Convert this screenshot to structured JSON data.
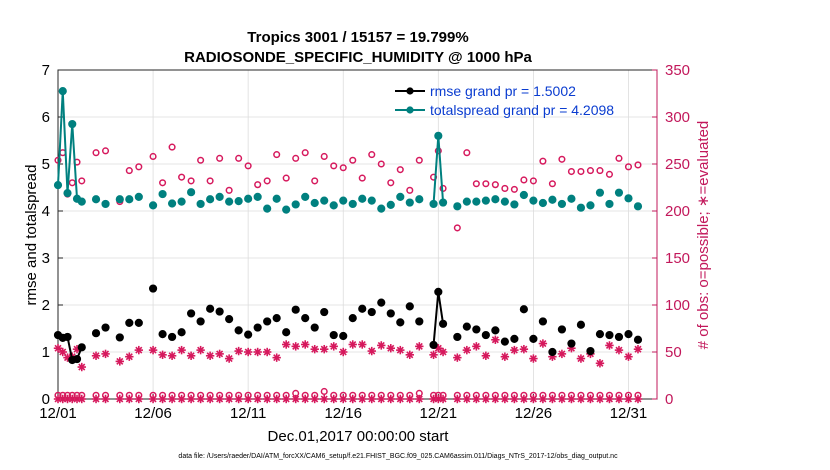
{
  "chart_data": {
    "type": "line",
    "title": "Tropics 3001 / 15157 = 19.799%",
    "subtitle": "RADIOSONDE_SPECIFIC_HUMIDITY @ 1000 hPa",
    "xlabel": "Dec.01,2017 00:00:00 start",
    "ylabel_left": "rmse and totalspread",
    "ylabel_right": "# of obs: o=possible; ∗=evaluated",
    "xlim": [
      0,
      31.5
    ],
    "ylim_left": [
      0,
      7
    ],
    "ylim_right": [
      0,
      350
    ],
    "grid": true,
    "legend_position": "top-right",
    "x_ticks": [
      {
        "value": 0,
        "label": "12/01"
      },
      {
        "value": 5,
        "label": "12/06"
      },
      {
        "value": 10,
        "label": "12/11"
      },
      {
        "value": 15,
        "label": "12/16"
      },
      {
        "value": 20,
        "label": "12/21"
      },
      {
        "value": 25,
        "label": "12/26"
      },
      {
        "value": 30,
        "label": "12/31"
      }
    ],
    "y_ticks_left": [
      0,
      1,
      2,
      3,
      4,
      5,
      6,
      7
    ],
    "y_ticks_right": [
      0,
      50,
      100,
      150,
      200,
      250,
      300,
      350
    ],
    "colors": {
      "rmse": "#000000",
      "spread": "#00807f",
      "obs": "#d6195d",
      "axis_right": "#c2185b"
    },
    "series": [
      {
        "name": "rmse grand pr = 1.5002",
        "axis": "left",
        "connect_gap_days": 0.3,
        "x": [
          0,
          0.25,
          0.5,
          0.75,
          1,
          1.25,
          2,
          2.5,
          3.25,
          3.75,
          4.25,
          5,
          5.5,
          6,
          6.5,
          7,
          7.5,
          8,
          8.5,
          9,
          9.5,
          10,
          10.5,
          11,
          11.5,
          12,
          12.5,
          13,
          13.5,
          14,
          14.5,
          15,
          15.5,
          16,
          16.5,
          17,
          17.5,
          18,
          18.5,
          19,
          19.75,
          20,
          20.25,
          21,
          21.5,
          22,
          22.5,
          23,
          23.5,
          24,
          24.5,
          25,
          25.5,
          26,
          26.5,
          27,
          27.5,
          28,
          28.5,
          29,
          29.5,
          30,
          30.5
        ],
        "values": [
          1.36,
          1.3,
          1.32,
          0.83,
          0.85,
          1.1,
          1.4,
          1.52,
          1.31,
          1.62,
          1.62,
          2.35,
          1.38,
          1.32,
          1.42,
          1.82,
          1.65,
          1.92,
          1.86,
          1.7,
          1.46,
          1.37,
          1.52,
          1.65,
          1.72,
          1.42,
          1.9,
          1.72,
          1.52,
          1.85,
          1.36,
          1.34,
          1.72,
          1.92,
          1.85,
          2.05,
          1.82,
          1.63,
          1.97,
          1.65,
          1.15,
          2.28,
          1.6,
          1.32,
          1.54,
          1.48,
          1.36,
          1.46,
          1.22,
          1.28,
          1.91,
          1.28,
          1.65,
          1.0,
          1.48,
          1.18,
          1.58,
          1.02,
          1.38,
          1.36,
          1.32,
          1.38,
          1.26
        ]
      },
      {
        "name": "totalspread grand pr = 4.2098",
        "axis": "left",
        "connect_gap_days": 0.3,
        "x": [
          0,
          0.25,
          0.5,
          0.75,
          1,
          1.25,
          2,
          2.5,
          3.25,
          3.75,
          4.25,
          5,
          5.5,
          6,
          6.5,
          7,
          7.5,
          8,
          8.5,
          9,
          9.5,
          10,
          10.5,
          11,
          11.5,
          12,
          12.5,
          13,
          13.5,
          14,
          14.5,
          15,
          15.5,
          16,
          16.5,
          17,
          17.5,
          18,
          18.5,
          19,
          19.75,
          20,
          20.25,
          21,
          21.5,
          22,
          22.5,
          23,
          23.5,
          24,
          24.5,
          25,
          25.5,
          26,
          26.5,
          27,
          27.5,
          28,
          28.5,
          29,
          29.5,
          30,
          30.5
        ],
        "values": [
          4.55,
          6.55,
          4.38,
          5.85,
          4.26,
          4.2,
          4.25,
          4.15,
          4.25,
          4.25,
          4.3,
          4.12,
          4.36,
          4.16,
          4.2,
          4.4,
          4.15,
          4.25,
          4.3,
          4.2,
          4.21,
          4.26,
          4.3,
          4.05,
          4.26,
          4.03,
          4.14,
          4.3,
          4.17,
          4.22,
          4.12,
          4.22,
          4.15,
          4.26,
          4.22,
          4.05,
          4.13,
          4.3,
          4.18,
          4.25,
          4.15,
          5.6,
          4.18,
          4.1,
          4.2,
          4.2,
          4.22,
          4.25,
          4.2,
          4.14,
          4.34,
          4.22,
          4.17,
          4.24,
          4.15,
          4.26,
          4.07,
          4.12,
          4.39,
          4.15,
          4.39,
          4.27,
          4.1
        ]
      },
      {
        "name": "possible",
        "axis": "right",
        "marker": "circle",
        "x": [
          0,
          0.25,
          0.5,
          0.75,
          1,
          1.25,
          2,
          2.5,
          3.25,
          3.75,
          4.25,
          5,
          5.5,
          6,
          6.5,
          7,
          7.5,
          8,
          8.5,
          9,
          9.5,
          10,
          10.5,
          11,
          11.5,
          12,
          12.5,
          13,
          13.5,
          14,
          14.5,
          15,
          15.5,
          16,
          16.5,
          17,
          17.5,
          18,
          18.5,
          19,
          19.75,
          20,
          20.25,
          21,
          21.5,
          22,
          22.5,
          23,
          23.5,
          24,
          24.5,
          25,
          25.5,
          26,
          26.5,
          27,
          27.5,
          28,
          28.5,
          29,
          29.5,
          30,
          30.5
        ],
        "values": [
          254,
          262,
          218,
          230,
          252,
          232,
          262,
          264,
          210,
          243,
          247,
          258,
          230,
          268,
          236,
          232,
          254,
          232,
          256,
          222,
          256,
          248,
          228,
          232,
          260,
          235,
          256,
          262,
          232,
          258,
          248,
          246,
          254,
          235,
          260,
          250,
          230,
          244,
          222,
          254,
          236,
          264,
          224,
          182,
          262,
          229,
          229,
          228,
          224,
          223,
          233,
          232,
          253,
          229,
          255,
          242,
          242,
          243,
          243,
          239,
          256,
          247,
          249
        ]
      },
      {
        "name": "evaluated",
        "axis": "right",
        "marker": "asterisk",
        "x": [
          0,
          0.25,
          0.5,
          0.75,
          1,
          1.25,
          2,
          2.5,
          3.25,
          3.75,
          4.25,
          5,
          5.5,
          6,
          6.5,
          7,
          7.5,
          8,
          8.5,
          9,
          9.5,
          10,
          10.5,
          11,
          11.5,
          12,
          12.5,
          13,
          13.5,
          14,
          14.5,
          15,
          15.5,
          16,
          16.5,
          17,
          17.5,
          18,
          18.5,
          19,
          19.75,
          20,
          20.25,
          21,
          21.5,
          22,
          22.5,
          23,
          23.5,
          24,
          24.5,
          25,
          25.5,
          26,
          26.5,
          27,
          27.5,
          28,
          28.5,
          29,
          29.5,
          30,
          30.5
        ],
        "values": [
          54,
          50,
          44,
          45,
          53,
          34,
          46,
          48,
          40,
          45,
          52,
          52,
          47,
          46,
          52,
          46,
          52,
          46,
          48,
          43,
          51,
          50,
          50,
          50,
          44,
          58,
          56,
          58,
          53,
          53,
          56,
          50,
          58,
          58,
          51,
          57,
          54,
          52,
          47,
          56,
          47,
          54,
          50,
          44,
          52,
          56,
          46,
          63,
          45,
          52,
          53,
          43,
          59,
          45,
          48,
          54,
          43,
          48,
          38,
          57,
          52,
          45,
          53
        ]
      },
      {
        "name": "possible_baseline",
        "axis": "right",
        "marker": "circle",
        "x": [
          0,
          0.25,
          0.5,
          0.75,
          1,
          1.25,
          2,
          2.5,
          3.25,
          3.75,
          4.25,
          5,
          5.5,
          6,
          6.5,
          7,
          7.5,
          8,
          8.5,
          9,
          9.5,
          10,
          10.5,
          11,
          11.5,
          12,
          12.5,
          13,
          13.5,
          14,
          14.5,
          15,
          15.5,
          16,
          16.5,
          17,
          17.5,
          18,
          18.5,
          19,
          19.75,
          20,
          20.25,
          21,
          21.5,
          22,
          22.5,
          23,
          23.5,
          24,
          24.5,
          25,
          25.5,
          26,
          26.5,
          27,
          27.5,
          28,
          28.5,
          29,
          29.5,
          30,
          30.5
        ],
        "values": [
          4,
          4,
          4,
          4,
          4,
          4,
          4,
          4,
          4,
          4,
          4,
          4,
          4,
          4,
          4,
          4,
          4,
          4,
          4,
          4,
          4,
          4,
          4,
          4,
          4,
          4,
          6,
          4,
          4,
          8,
          4,
          4,
          4,
          4,
          4,
          4,
          4,
          4,
          4,
          6,
          4,
          4,
          4,
          4,
          4,
          4,
          4,
          4,
          4,
          4,
          4,
          4,
          4,
          4,
          4,
          4,
          4,
          4,
          4,
          4,
          4,
          4,
          4
        ]
      },
      {
        "name": "evaluated_baseline",
        "axis": "right",
        "marker": "asterisk",
        "x": [
          0,
          0.25,
          0.5,
          0.75,
          1,
          1.25,
          2,
          2.5,
          3.25,
          3.75,
          4.25,
          5,
          5.5,
          6,
          6.5,
          7,
          7.5,
          8,
          8.5,
          9,
          9.5,
          10,
          10.5,
          11,
          11.5,
          12,
          12.5,
          13,
          13.5,
          14,
          14.5,
          15,
          15.5,
          16,
          16.5,
          17,
          17.5,
          18,
          18.5,
          19,
          19.75,
          20,
          20.25,
          21,
          21.5,
          22,
          22.5,
          23,
          23.5,
          24,
          24.5,
          25,
          25.5,
          26,
          26.5,
          27,
          27.5,
          28,
          28.5,
          29,
          29.5,
          30,
          30.5
        ],
        "values": [
          0,
          0,
          0,
          0,
          0,
          0,
          0,
          0,
          0,
          0,
          0,
          0,
          0,
          0,
          0,
          0,
          0,
          0,
          0,
          0,
          0,
          0,
          0,
          0,
          0,
          0,
          0,
          0,
          0,
          0,
          0,
          0,
          0,
          0,
          0,
          0,
          0,
          0,
          0,
          0,
          0,
          0,
          0,
          0,
          0,
          0,
          0,
          0,
          0,
          0,
          0,
          0,
          0,
          0,
          0,
          0,
          0,
          0,
          0,
          0,
          0,
          0,
          0
        ]
      }
    ],
    "footnote": "data file: /Users/raeder/DAI/ATM_forcXX/CAM6_setup/f.e21.FHIST_BGC.f09_025.CAM6assim.011/Diags_NTrS_2017-12/obs_diag_output.nc"
  }
}
